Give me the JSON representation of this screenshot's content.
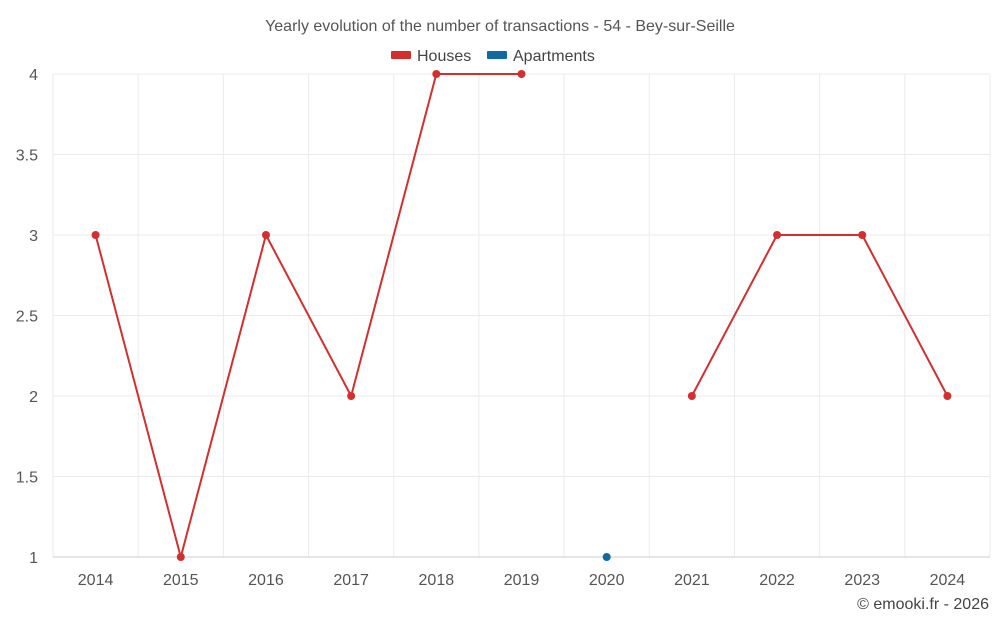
{
  "chart_data": {
    "type": "line",
    "title": "Yearly evolution of the number of transactions - 54 - Bey-sur-Seille",
    "categories": [
      "2014",
      "2015",
      "2016",
      "2017",
      "2018",
      "2019",
      "2020",
      "2021",
      "2022",
      "2023",
      "2024"
    ],
    "series": [
      {
        "name": "Houses",
        "color": "#d32f2f",
        "values": [
          3,
          1,
          3,
          2,
          4,
          4,
          null,
          2,
          3,
          3,
          2
        ]
      },
      {
        "name": "Apartments",
        "color": "#0f6aa3",
        "values": [
          null,
          null,
          null,
          null,
          null,
          null,
          1,
          null,
          null,
          null,
          null
        ]
      }
    ],
    "ylim": [
      1,
      4
    ],
    "yticks": [
      "1",
      "1.5",
      "2",
      "2.5",
      "3",
      "3.5",
      "4"
    ],
    "grid": true,
    "legend_position": "top-center"
  },
  "credit": "© emooki.fr - 2026"
}
